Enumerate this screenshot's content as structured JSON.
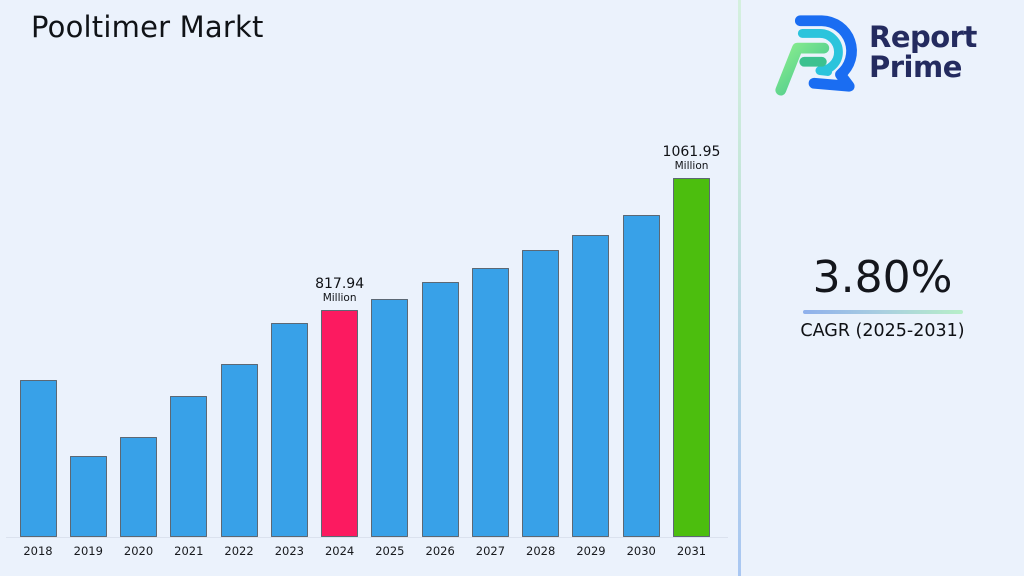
{
  "header": {
    "title": "Pooltimer Markt"
  },
  "logo": {
    "line1": "Report",
    "line2": "Prime",
    "mark_icon": "report-prime-logo-mark",
    "text_color": "#242b5f",
    "mark_blue": "#1a6df2",
    "mark_teal": "#2bc4dc",
    "mark_green_light": "#8bee8e",
    "mark_green_dark": "#3cc18f"
  },
  "cagr": {
    "value": "3.80%",
    "label": "CAGR (2025-2031)"
  },
  "colors": {
    "background": "#ebf2fc",
    "bar_default": "#38a1e8",
    "bar_highlight_2024": "#fc1a60",
    "bar_highlight_2031": "#4cbe0e",
    "bar_border": "#5c6874",
    "divider_top": "#d4f0de",
    "divider_bottom": "#a9c7f2",
    "underline_left": "#8fb0ec",
    "underline_right": "#b7efc8"
  },
  "chart_data": {
    "type": "bar",
    "title": "Pooltimer Markt",
    "xlabel": "",
    "ylabel": "",
    "unit": "Million",
    "grid": false,
    "legend": false,
    "categories": [
      "2018",
      "2019",
      "2020",
      "2021",
      "2022",
      "2023",
      "2024",
      "2025",
      "2026",
      "2027",
      "2028",
      "2029",
      "2030",
      "2031"
    ],
    "values": [
      689,
      549,
      584,
      660,
      719,
      795,
      817.94,
      838,
      869,
      895,
      928,
      956,
      993,
      1061.95
    ],
    "ylim": [
      400,
      1100
    ],
    "bar_default_color": "#38a1e8",
    "highlights": {
      "2024": "#fc1a60",
      "2031": "#4cbe0e"
    },
    "data_labels": {
      "2024": {
        "value": "817.94",
        "unit": "Million"
      },
      "2031": {
        "value": "1061.95",
        "unit": "Million"
      }
    }
  }
}
